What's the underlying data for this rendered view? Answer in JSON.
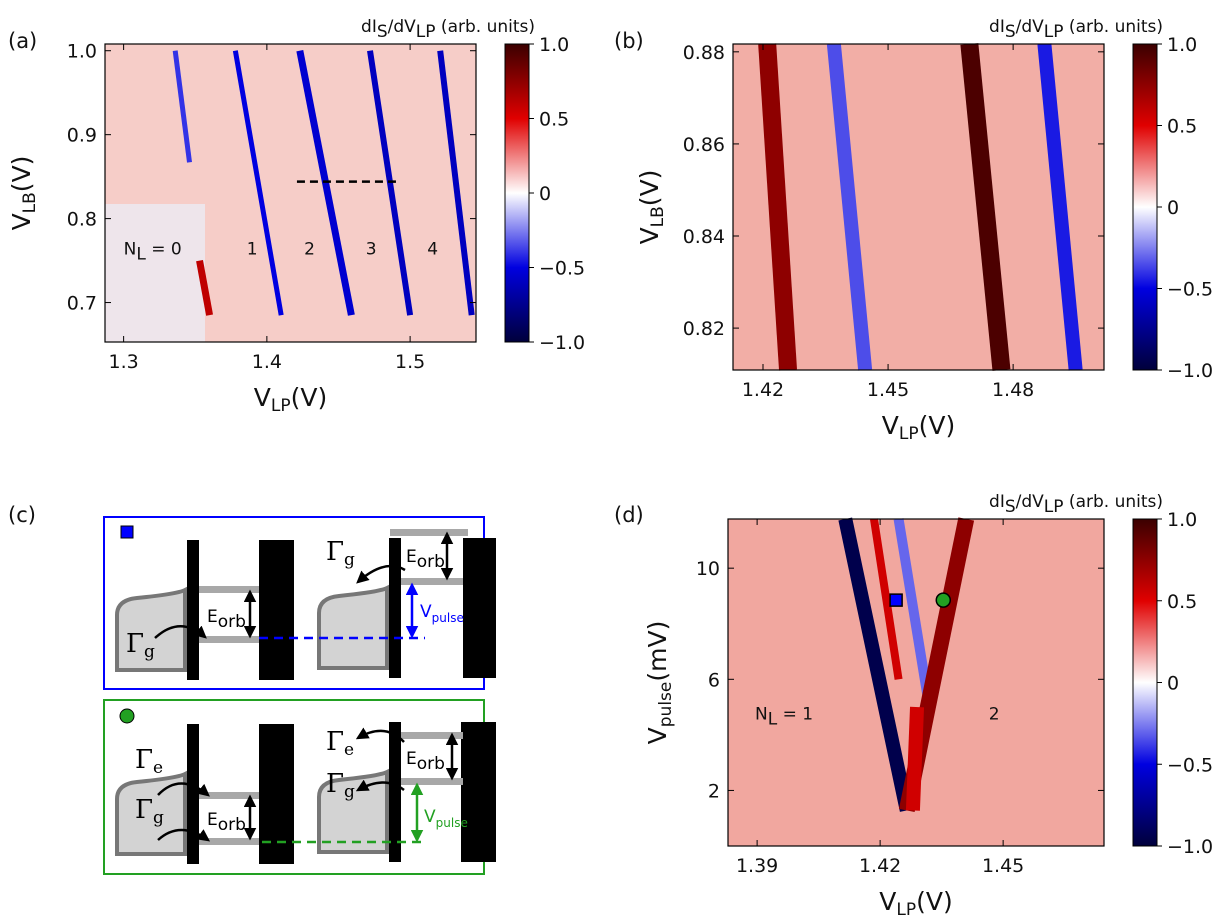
{
  "colors": {
    "cb_top": "#3b0000",
    "cb_red": "#e00000",
    "cb_white": "#ffffff",
    "cb_blue": "#0000e0",
    "cb_bottom": "#00003b",
    "bg_a": "#f6cdc8",
    "bg_b": "#f2aea6",
    "bg_d": "#f1a79f",
    "blue_box": "#0000ff",
    "green_box": "#22a022",
    "grey_level": "#a8a8a8",
    "dot_fill": "#d3d3d3"
  },
  "colorbar": {
    "title_main": "dI",
    "title_sub1": "S",
    "title_mid": "/dV",
    "title_sub2": "LP",
    "title_end": " (arb. units)",
    "ticks": [
      "1.0",
      "0.5",
      "0",
      "−0.5",
      "−1.0"
    ],
    "range": [
      -1,
      1
    ]
  },
  "chart_data": [
    {
      "type": "heatmap",
      "panel": "(a)",
      "xlabel_main": "V",
      "xlabel_sub": "LP",
      "xlabel_unit": "(V)",
      "ylabel_main": "V",
      "ylabel_sub": "LB",
      "ylabel_unit": "(V)",
      "xlim": [
        1.287,
        1.546
      ],
      "ylim": [
        0.653,
        1.008
      ],
      "xticks": [
        "1.3",
        "1.4",
        "1.5"
      ],
      "xtick_vals": [
        1.3,
        1.4,
        1.5
      ],
      "yticks": [
        "1.0",
        "0.9",
        "0.8",
        "0.7"
      ],
      "ytick_vals": [
        1.0,
        0.9,
        0.8,
        0.7
      ],
      "lines": [
        {
          "sign": -0.4,
          "pts": [
            [
              1.336,
              1.0
            ],
            [
              1.346,
              0.867
            ]
          ]
        },
        {
          "sign": 0.6,
          "pts": [
            [
              1.353,
              0.75
            ],
            [
              1.36,
              0.685
            ]
          ]
        },
        {
          "sign": -0.5,
          "pts": [
            [
              1.378,
              1.0
            ],
            [
              1.41,
              0.685
            ]
          ]
        },
        {
          "sign": -0.55,
          "pts": [
            [
              1.423,
              1.0
            ],
            [
              1.459,
              0.685
            ]
          ]
        },
        {
          "sign": -0.6,
          "pts": [
            [
              1.472,
              1.0
            ],
            [
              1.5,
              0.685
            ]
          ]
        },
        {
          "sign": -0.6,
          "pts": [
            [
              1.521,
              1.0
            ],
            [
              1.543,
              0.685
            ]
          ]
        }
      ],
      "cut": [
        [
          1.421,
          0.844
        ],
        [
          1.492,
          0.844
        ]
      ],
      "labels": [
        {
          "text": "N",
          "sub": "L",
          "rest": " = 0",
          "x": 1.3,
          "y": 0.757
        },
        {
          "text": "1",
          "x": 1.386,
          "y": 0.757
        },
        {
          "text": "2",
          "x": 1.426,
          "y": 0.757
        },
        {
          "text": "3",
          "x": 1.469,
          "y": 0.757
        },
        {
          "text": "4",
          "x": 1.512,
          "y": 0.757
        }
      ]
    },
    {
      "type": "heatmap",
      "panel": "(b)",
      "xlabel_main": "V",
      "xlabel_sub": "LP",
      "xlabel_unit": "(V)",
      "ylabel_main": "V",
      "ylabel_sub": "LB",
      "ylabel_unit": "(V)",
      "xlim": [
        1.4128,
        1.5018
      ],
      "ylim": [
        0.8109,
        0.8817
      ],
      "xticks": [
        "1.42",
        "1.45",
        "1.48"
      ],
      "xtick_vals": [
        1.42,
        1.45,
        1.48
      ],
      "yticks": [
        "0.88",
        "0.86",
        "0.84",
        "0.82"
      ],
      "ytick_vals": [
        0.88,
        0.86,
        0.84,
        0.82
      ],
      "lines": [
        {
          "sign": 0.75,
          "pts": [
            [
              1.421,
              0.8817
            ],
            [
              1.426,
              0.8109
            ]
          ]
        },
        {
          "sign": -0.35,
          "pts": [
            [
              1.437,
              0.8817
            ],
            [
              1.4445,
              0.8109
            ]
          ]
        },
        {
          "sign": 0.95,
          "pts": [
            [
              1.4695,
              0.8817
            ],
            [
              1.4772,
              0.8109
            ]
          ]
        },
        {
          "sign": -0.45,
          "pts": [
            [
              1.4875,
              0.8817
            ],
            [
              1.495,
              0.8109
            ]
          ]
        }
      ]
    },
    {
      "type": "heatmap",
      "panel": "(d)",
      "xlabel_main": "V",
      "xlabel_sub": "LP",
      "xlabel_unit": "(V)",
      "ylabel_main": "V",
      "ylabel_sub": "pulse",
      "ylabel_unit": "(mV)",
      "xlim": [
        1.3829,
        1.4746
      ],
      "ylim": [
        0,
        11.77
      ],
      "xticks": [
        "1.39",
        "1.42",
        "1.45"
      ],
      "xtick_vals": [
        1.39,
        1.42,
        1.45
      ],
      "yticks": [
        "10",
        "6",
        "2"
      ],
      "ytick_vals": [
        10,
        6,
        2
      ],
      "lines": [
        {
          "sign": -0.95,
          "pts": [
            [
              1.4115,
              11.77
            ],
            [
              1.4265,
              1.28
            ]
          ]
        },
        {
          "sign": 0.55,
          "pts": [
            [
              1.4185,
              11.77
            ],
            [
              1.4245,
              6.0
            ]
          ]
        },
        {
          "sign": -0.3,
          "pts": [
            [
              1.4245,
              11.77
            ],
            [
              1.432,
              5.0
            ]
          ]
        },
        {
          "sign": 0.75,
          "pts": [
            [
              1.441,
              11.77
            ],
            [
              1.4265,
              1.28
            ]
          ]
        },
        {
          "sign": 0.55,
          "pts": [
            [
              1.429,
              5.0
            ],
            [
              1.428,
              1.28
            ]
          ]
        }
      ],
      "markers": [
        {
          "shape": "square",
          "x": 1.4239,
          "y": 8.85,
          "color": "#0000ff"
        },
        {
          "shape": "circle",
          "x": 1.4354,
          "y": 8.85,
          "color": "#22a022"
        }
      ],
      "labels": [
        {
          "text": "N",
          "sub": "L",
          "rest": " = 1",
          "x": 1.3895,
          "y": 4.55
        },
        {
          "text": "2",
          "x": 1.4465,
          "y": 4.55
        }
      ]
    }
  ],
  "panel_c": {
    "label": "(c)",
    "gamma": "Γ",
    "g": "g",
    "e": "e",
    "E": "E",
    "orb": "orb",
    "V": "V",
    "pulse": "pulse"
  },
  "panel_labels": {
    "a": "(a)",
    "b": "(b)",
    "d": "(d)"
  }
}
